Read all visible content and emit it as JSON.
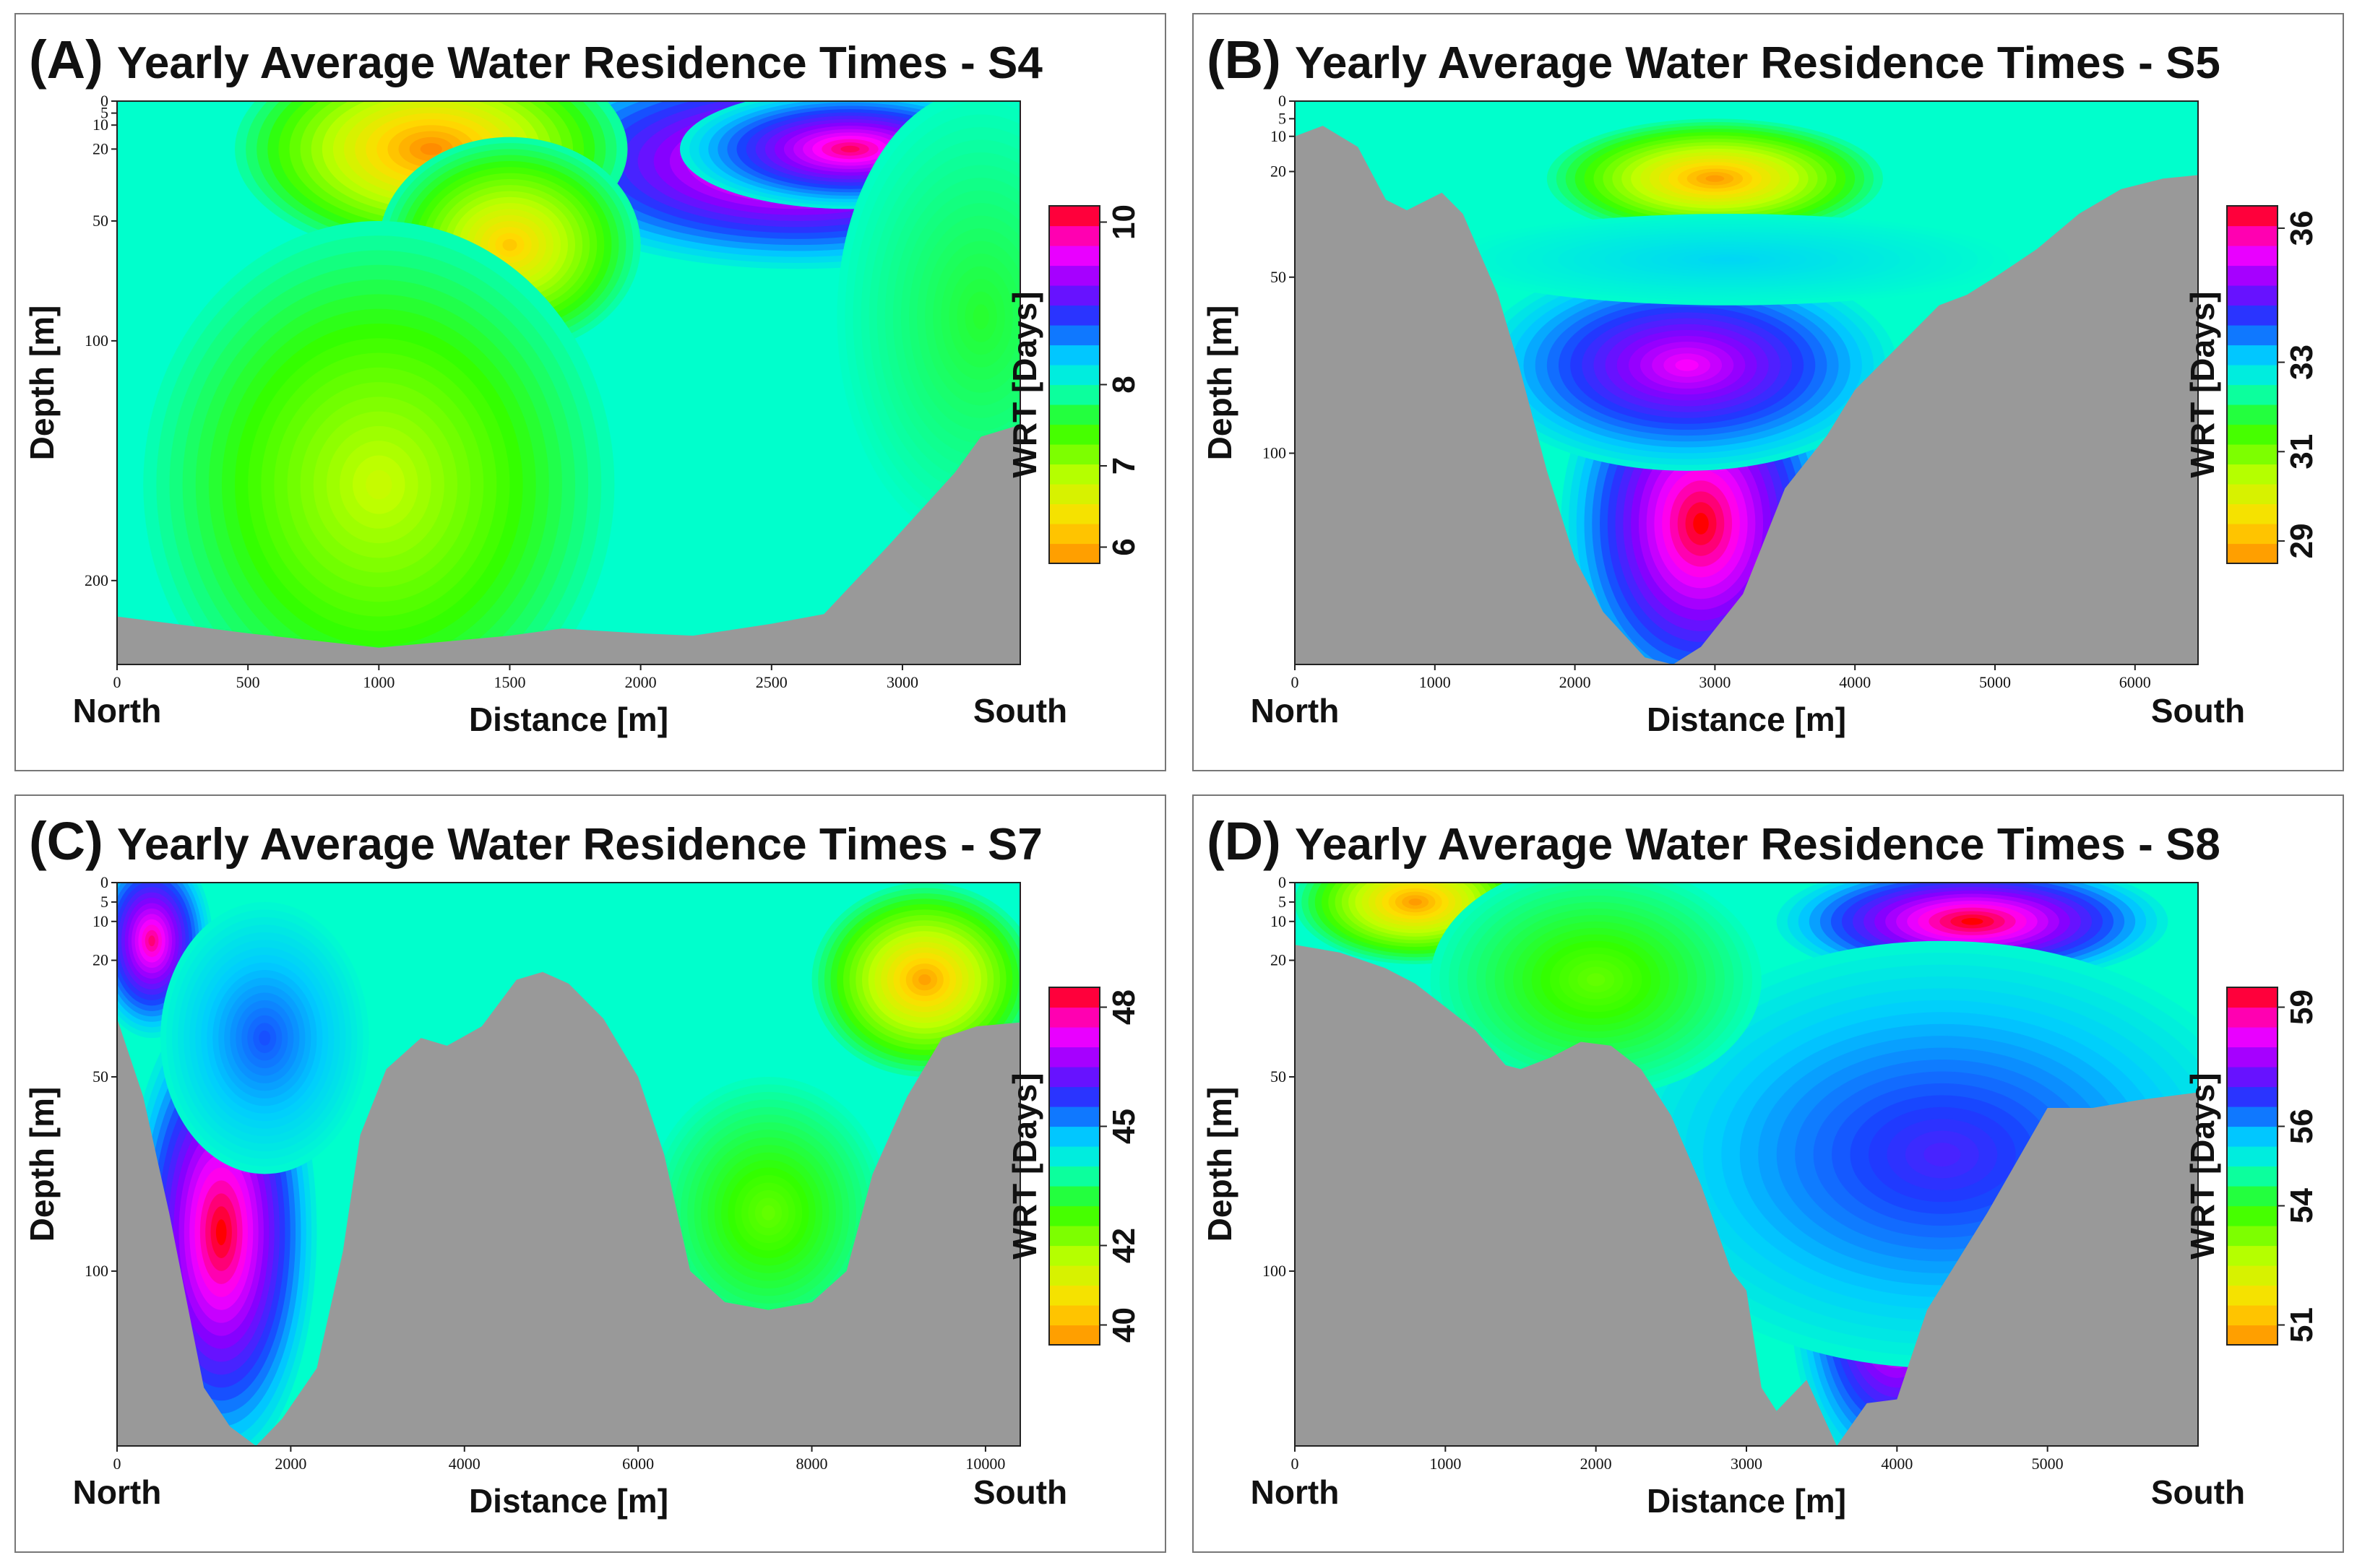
{
  "figure": {
    "note": "Four contour cross-sections of yearly average water residence time"
  },
  "chart_data": [
    {
      "type": "heatmap",
      "panel": "(A)",
      "title": "Yearly Average Water Residence Times - S4",
      "xlabel": "Distance [m]",
      "ylabel": "Depth [m]",
      "xlim": [
        0,
        3450
      ],
      "ylim": [
        0,
        235
      ],
      "xticks": [
        0,
        500,
        1000,
        1500,
        2000,
        2500,
        3000
      ],
      "yticks": [
        0,
        5,
        10,
        20,
        50,
        100,
        200
      ],
      "x_start_label": "North",
      "x_end_label": "South",
      "colorbar": {
        "label": "WRT [Days]",
        "min": 5.8,
        "max": 10.2,
        "ticks": [
          6,
          7,
          8,
          10
        ]
      },
      "bathymetry": [
        [
          0,
          215
        ],
        [
          500,
          222
        ],
        [
          1000,
          228
        ],
        [
          1500,
          223
        ],
        [
          1700,
          220
        ],
        [
          2000,
          222
        ],
        [
          2200,
          223
        ],
        [
          2500,
          218
        ],
        [
          2700,
          214
        ],
        [
          2950,
          185
        ],
        [
          3200,
          155
        ],
        [
          3300,
          140
        ],
        [
          3450,
          135
        ]
      ],
      "features": [
        {
          "x": 2600,
          "y": 25,
          "value": 10.2,
          "rx": 1100,
          "ry": 45
        },
        {
          "x": 2800,
          "y": 20,
          "value": 10.0,
          "rx": 650,
          "ry": 25
        },
        {
          "x": 1200,
          "y": 20,
          "value": 5.8,
          "rx": 750,
          "ry": 45
        },
        {
          "x": 1500,
          "y": 60,
          "value": 6.2,
          "rx": 500,
          "ry": 45
        },
        {
          "x": 3300,
          "y": 90,
          "value": 7.6,
          "rx": 550,
          "ry": 95
        },
        {
          "x": 1000,
          "y": 160,
          "value": 6.8,
          "rx": 900,
          "ry": 110
        }
      ]
    },
    {
      "type": "heatmap",
      "panel": "(B)",
      "title": "Yearly Average Water Residence Times - S5",
      "xlabel": "Distance [m]",
      "ylabel": "Depth [m]",
      "xlim": [
        0,
        6450
      ],
      "ylim": [
        0,
        160
      ],
      "xticks": [
        0,
        1000,
        2000,
        3000,
        4000,
        5000,
        6000
      ],
      "yticks": [
        0,
        5,
        10,
        20,
        50,
        100
      ],
      "x_start_label": "North",
      "x_end_label": "South",
      "colorbar": {
        "label": "WRT [Days]",
        "min": 28.5,
        "max": 36.5,
        "ticks": [
          29,
          31,
          33,
          36
        ]
      },
      "bathymetry": [
        [
          0,
          10
        ],
        [
          200,
          7
        ],
        [
          450,
          13
        ],
        [
          650,
          28
        ],
        [
          800,
          31
        ],
        [
          1050,
          26
        ],
        [
          1200,
          32
        ],
        [
          1450,
          55
        ],
        [
          1600,
          75
        ],
        [
          1800,
          105
        ],
        [
          2000,
          130
        ],
        [
          2200,
          145
        ],
        [
          2500,
          158
        ],
        [
          2700,
          160
        ],
        [
          2900,
          155
        ],
        [
          3200,
          140
        ],
        [
          3500,
          110
        ],
        [
          3800,
          95
        ],
        [
          4000,
          82
        ],
        [
          4300,
          70
        ],
        [
          4600,
          58
        ],
        [
          4800,
          55
        ],
        [
          5000,
          50
        ],
        [
          5300,
          42
        ],
        [
          5600,
          32
        ],
        [
          5900,
          25
        ],
        [
          6200,
          22
        ],
        [
          6450,
          21
        ]
      ],
      "features": [
        {
          "x": 2900,
          "y": 120,
          "value": 36.5,
          "rx": 1000,
          "ry": 55
        },
        {
          "x": 2800,
          "y": 75,
          "value": 35.5,
          "rx": 1500,
          "ry": 30
        },
        {
          "x": 3000,
          "y": 22,
          "value": 28.7,
          "rx": 1200,
          "ry": 17
        },
        {
          "x": 3100,
          "y": 45,
          "value": 33.0,
          "rx": 2000,
          "ry": 13
        }
      ]
    },
    {
      "type": "heatmap",
      "panel": "(C)",
      "title": "Yearly Average Water Residence Times - S7",
      "xlabel": "Distance [m]",
      "ylabel": "Depth [m]",
      "xlim": [
        0,
        10400
      ],
      "ylim": [
        0,
        145
      ],
      "xticks": [
        0,
        2000,
        4000,
        6000,
        8000,
        10000
      ],
      "yticks": [
        0,
        5,
        10,
        20,
        50,
        100
      ],
      "x_start_label": "North",
      "x_end_label": "South",
      "colorbar": {
        "label": "WRT [Days]",
        "min": 39.5,
        "max": 48.5,
        "ticks": [
          40,
          42,
          45,
          48
        ]
      },
      "bathymetry": [
        [
          0,
          35
        ],
        [
          300,
          55
        ],
        [
          600,
          85
        ],
        [
          1000,
          130
        ],
        [
          1300,
          140
        ],
        [
          1600,
          145
        ],
        [
          1900,
          138
        ],
        [
          2300,
          125
        ],
        [
          2600,
          95
        ],
        [
          2800,
          65
        ],
        [
          3100,
          48
        ],
        [
          3500,
          40
        ],
        [
          3800,
          42
        ],
        [
          4200,
          37
        ],
        [
          4600,
          25
        ],
        [
          4900,
          23
        ],
        [
          5200,
          26
        ],
        [
          5600,
          35
        ],
        [
          6000,
          50
        ],
        [
          6300,
          70
        ],
        [
          6600,
          100
        ],
        [
          7000,
          108
        ],
        [
          7500,
          110
        ],
        [
          8000,
          108
        ],
        [
          8400,
          100
        ],
        [
          8700,
          75
        ],
        [
          9100,
          55
        ],
        [
          9500,
          40
        ],
        [
          9900,
          37
        ],
        [
          10400,
          36
        ]
      ],
      "features": [
        {
          "x": 1200,
          "y": 90,
          "value": 48.5,
          "rx": 1100,
          "ry": 60
        },
        {
          "x": 400,
          "y": 15,
          "value": 48.0,
          "rx": 700,
          "ry": 25
        },
        {
          "x": 1700,
          "y": 40,
          "value": 45.5,
          "rx": 1200,
          "ry": 35
        },
        {
          "x": 9300,
          "y": 25,
          "value": 39.8,
          "rx": 1300,
          "ry": 25
        },
        {
          "x": 7500,
          "y": 85,
          "value": 42.5,
          "rx": 1400,
          "ry": 35
        }
      ]
    },
    {
      "type": "heatmap",
      "panel": "(D)",
      "title": "Yearly Average Water Residence Times - S8",
      "xlabel": "Distance [m]",
      "ylabel": "Depth [m]",
      "xlim": [
        0,
        6000
      ],
      "ylim": [
        0,
        145
      ],
      "xticks": [
        0,
        1000,
        2000,
        3000,
        4000,
        5000
      ],
      "yticks": [
        0,
        5,
        10,
        20,
        50,
        100
      ],
      "x_start_label": "North",
      "x_end_label": "South",
      "colorbar": {
        "label": "WRT [Days]",
        "min": 50.5,
        "max": 59.5,
        "ticks": [
          51,
          54,
          56,
          59
        ]
      },
      "bathymetry": [
        [
          0,
          16
        ],
        [
          300,
          18
        ],
        [
          600,
          22
        ],
        [
          800,
          26
        ],
        [
          1000,
          32
        ],
        [
          1200,
          38
        ],
        [
          1400,
          47
        ],
        [
          1500,
          48
        ],
        [
          1700,
          45
        ],
        [
          1900,
          41
        ],
        [
          2100,
          42
        ],
        [
          2300,
          48
        ],
        [
          2500,
          60
        ],
        [
          2700,
          78
        ],
        [
          2900,
          100
        ],
        [
          3000,
          105
        ],
        [
          3100,
          130
        ],
        [
          3200,
          136
        ],
        [
          3400,
          128
        ],
        [
          3600,
          145
        ],
        [
          3800,
          134
        ],
        [
          4000,
          133
        ],
        [
          4200,
          110
        ],
        [
          4600,
          85
        ],
        [
          5000,
          58
        ],
        [
          5300,
          58
        ],
        [
          5600,
          56
        ],
        [
          6000,
          54
        ]
      ],
      "features": [
        {
          "x": 4500,
          "y": 10,
          "value": 59.5,
          "rx": 1300,
          "ry": 16
        },
        {
          "x": 4000,
          "y": 110,
          "value": 59.0,
          "rx": 700,
          "ry": 45
        },
        {
          "x": 4300,
          "y": 70,
          "value": 57.0,
          "rx": 2200,
          "ry": 55
        },
        {
          "x": 800,
          "y": 5,
          "value": 50.7,
          "rx": 800,
          "ry": 16
        },
        {
          "x": 2000,
          "y": 25,
          "value": 53.5,
          "rx": 1100,
          "ry": 30
        }
      ]
    }
  ]
}
